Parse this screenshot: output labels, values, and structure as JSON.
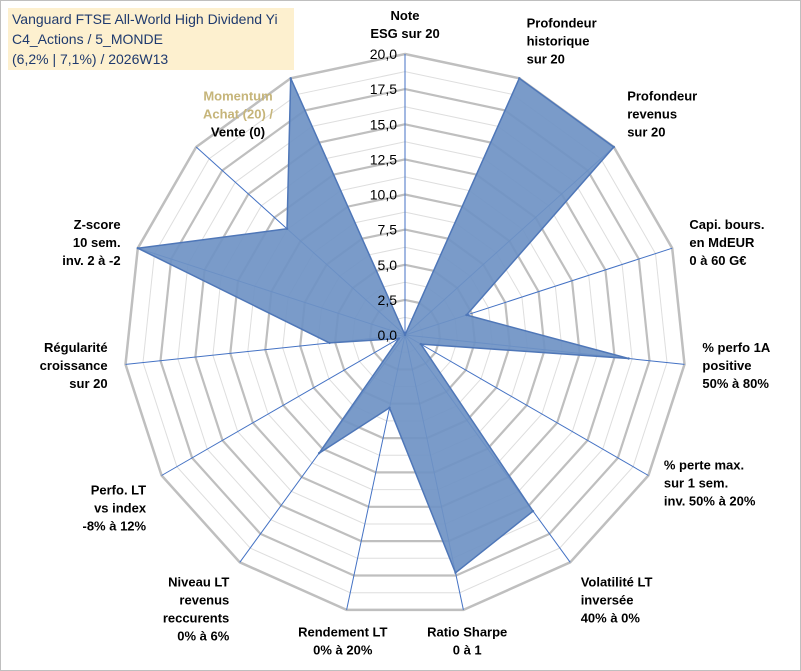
{
  "title": {
    "line1": "Vanguard FTSE All-World High Dividend Yi",
    "line2": "C4_Actions / 5_MONDE",
    "line3": "(6,2% | 7,1%) / 2026W13"
  },
  "colors": {
    "fill": "#6f93c4",
    "stroke": "#4f77b8",
    "grid": "#bfbfbf",
    "spoke": "#4472c4",
    "title_bg": "#fdf0cf",
    "title_text": "#1f3a6e",
    "momentum_text": "#c6b57a"
  },
  "chart_data": {
    "type": "radar",
    "r_range": [
      0,
      20
    ],
    "tick_values": [
      0,
      2.5,
      5,
      7.5,
      10,
      12.5,
      15,
      17.5,
      20
    ],
    "tick_labels": [
      "0,0",
      "2,5",
      "5,0",
      "7,5",
      "10,0",
      "12,5",
      "15,0",
      "17,5",
      "20,0"
    ],
    "grid": true,
    "axes": [
      {
        "label": [
          "Note",
          "ESG sur 20"
        ],
        "value": 0
      },
      {
        "label": [
          "Profondeur",
          "historique",
          "sur 20"
        ],
        "value": 20
      },
      {
        "label": [
          "Profondeur",
          "revenus",
          "sur 20"
        ],
        "value": 20
      },
      {
        "label": [
          "Capi. bours.",
          "en MdEUR",
          "0 à 60 G€"
        ],
        "value": 4.6
      },
      {
        "label": [
          "% perfo 1A",
          "positive",
          "50% à 80%"
        ],
        "value": 16
      },
      {
        "label": [
          "% perte max.",
          "sur 1 sem.",
          "inv. 50% à 20%"
        ],
        "value": 1.3
      },
      {
        "label": [
          "Volatilité LT",
          "inversée",
          "40% à 0%"
        ],
        "value": 15.5
      },
      {
        "label": [
          "Ratio Sharpe",
          "0 à 1"
        ],
        "value": 17.3
      },
      {
        "label": [
          "Rendement LT",
          "0% à 20%"
        ],
        "value": 5.3
      },
      {
        "label": [
          "Niveau LT",
          "revenus",
          "reccurents",
          "0% à 6%"
        ],
        "value": 10.4
      },
      {
        "label": [
          "Perfo. LT",
          "vs index",
          "-8% à 12%"
        ],
        "value": 0.5
      },
      {
        "label": [
          "Régularité",
          "croissance",
          "sur 20"
        ],
        "value": 5.4
      },
      {
        "label": [
          "Z-score",
          "10 sem.",
          "inv. 2 à -2"
        ],
        "value": 20
      },
      {
        "label": [
          "Momentum",
          "Achat (20) /",
          "Vente (0)"
        ],
        "value": 11.3
      },
      {
        "label": [],
        "value": 20
      }
    ]
  }
}
